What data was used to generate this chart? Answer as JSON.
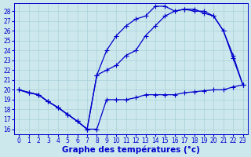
{
  "xlabel": "Graphe des températures (°c)",
  "background_color": "#cce8ec",
  "grid_color": "#a8d0d8",
  "line_color": "#0000cc",
  "xlim": [
    -0.5,
    23.5
  ],
  "ylim": [
    15.5,
    28.8
  ],
  "xticks": [
    0,
    1,
    2,
    3,
    4,
    5,
    6,
    7,
    8,
    9,
    10,
    11,
    12,
    13,
    14,
    15,
    16,
    17,
    18,
    19,
    20,
    21,
    22,
    23
  ],
  "yticks": [
    16,
    17,
    18,
    19,
    20,
    21,
    22,
    23,
    24,
    25,
    26,
    27,
    28
  ],
  "series1_x": [
    0,
    1,
    2,
    3,
    4,
    5,
    6,
    7,
    8,
    9,
    10,
    11,
    12,
    13,
    14,
    15,
    16,
    17,
    18,
    19,
    20,
    21,
    22,
    23
  ],
  "series1_y": [
    20.0,
    19.7,
    19.5,
    18.8,
    18.2,
    17.5,
    16.8,
    16.0,
    16.0,
    19.0,
    19.0,
    19.0,
    19.2,
    19.5,
    19.5,
    19.5,
    19.5,
    19.7,
    19.8,
    19.9,
    20.0,
    20.0,
    20.3,
    20.5
  ],
  "series2_x": [
    0,
    1,
    2,
    3,
    4,
    5,
    6,
    7,
    8,
    9,
    10,
    11,
    12,
    13,
    14,
    15,
    16,
    17,
    18,
    19,
    20,
    21,
    22,
    23
  ],
  "series2_y": [
    20.0,
    19.7,
    19.5,
    18.8,
    18.2,
    17.5,
    16.8,
    16.0,
    21.5,
    22.0,
    22.5,
    23.5,
    24.0,
    25.5,
    26.5,
    27.5,
    28.0,
    28.2,
    28.0,
    28.0,
    27.5,
    26.0,
    23.2,
    20.5
  ],
  "series3_x": [
    0,
    2,
    3,
    4,
    5,
    6,
    7,
    8,
    9,
    10,
    11,
    12,
    13,
    14,
    15,
    16,
    17,
    18,
    19,
    20,
    21,
    22,
    23
  ],
  "series3_y": [
    20.0,
    19.5,
    18.8,
    18.2,
    17.5,
    16.8,
    16.0,
    21.5,
    24.0,
    25.5,
    26.5,
    27.2,
    27.5,
    28.5,
    28.5,
    28.0,
    28.2,
    28.2,
    27.8,
    27.5,
    26.0,
    23.5,
    20.5
  ],
  "marker": "+",
  "markersize": 4,
  "linewidth": 0.9,
  "tick_fontsize": 5.5,
  "xlabel_fontsize": 7.5
}
